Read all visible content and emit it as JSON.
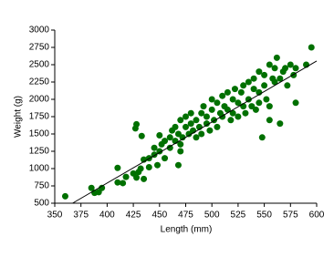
{
  "chart_data": {
    "type": "scatter",
    "x_label": "Length (mm)",
    "y_label": "Weight (g)",
    "color": "#007000",
    "x": [
      360,
      385,
      388,
      392,
      395,
      410,
      410,
      415,
      418,
      425,
      428,
      430,
      432,
      435,
      435,
      440,
      440,
      445,
      445,
      448,
      450,
      452,
      455,
      455,
      460,
      460,
      462,
      465,
      465,
      468,
      470,
      470,
      472,
      475,
      475,
      478,
      480,
      480,
      482,
      485,
      485,
      488,
      490,
      490,
      492,
      495,
      495,
      498,
      500,
      500,
      502,
      505,
      505,
      508,
      510,
      510,
      512,
      515,
      515,
      518,
      520,
      520,
      522,
      525,
      525,
      528,
      530,
      530,
      532,
      535,
      535,
      538,
      540,
      540,
      542,
      545,
      545,
      548,
      550,
      550,
      552,
      555,
      555,
      558,
      560,
      562,
      565,
      565,
      568,
      570,
      572,
      575,
      578,
      580,
      580,
      590,
      595,
      555,
      560,
      545,
      427,
      428,
      433,
      450,
      468,
      470
    ],
    "values": [
      600,
      720,
      650,
      660,
      720,
      1010,
      800,
      790,
      880,
      930,
      870,
      950,
      1000,
      850,
      1130,
      1150,
      1020,
      1300,
      1200,
      1050,
      1250,
      1350,
      1400,
      1150,
      1450,
      1300,
      1550,
      1600,
      1400,
      1500,
      1700,
      1350,
      1450,
      1600,
      1750,
      1500,
      1800,
      1650,
      1550,
      1700,
      1450,
      1600,
      1800,
      1500,
      1900,
      1650,
      1750,
      1550,
      2000,
      1850,
      1700,
      1950,
      1600,
      1800,
      2050,
      1750,
      1900,
      2100,
      1850,
      1700,
      2000,
      1800,
      2150,
      1950,
      1750,
      2100,
      1900,
      2200,
      1800,
      2250,
      2000,
      1900,
      2150,
      2300,
      1850,
      2400,
      2100,
      1450,
      2350,
      2200,
      2000,
      2500,
      1700,
      2300,
      2450,
      2600,
      2300,
      1650,
      2400,
      2450,
      2200,
      2500,
      2350,
      2450,
      1950,
      2500,
      2750,
      1900,
      2250,
      1950,
      1580,
      1640,
      1470,
      1480,
      1050,
      1250
    ],
    "trend_line": {
      "x": [
        367,
        600
      ],
      "y": [
        500,
        2553
      ],
      "color": "#000000"
    },
    "xlim": [
      350,
      600
    ],
    "xticks": [
      350,
      375,
      400,
      425,
      450,
      475,
      500,
      525,
      550,
      575,
      600
    ],
    "ylim": [
      500,
      3000
    ],
    "yticks": [
      500,
      750,
      1000,
      1250,
      1500,
      1750,
      2000,
      2250,
      2500,
      2750,
      3000
    ],
    "grid": false
  }
}
